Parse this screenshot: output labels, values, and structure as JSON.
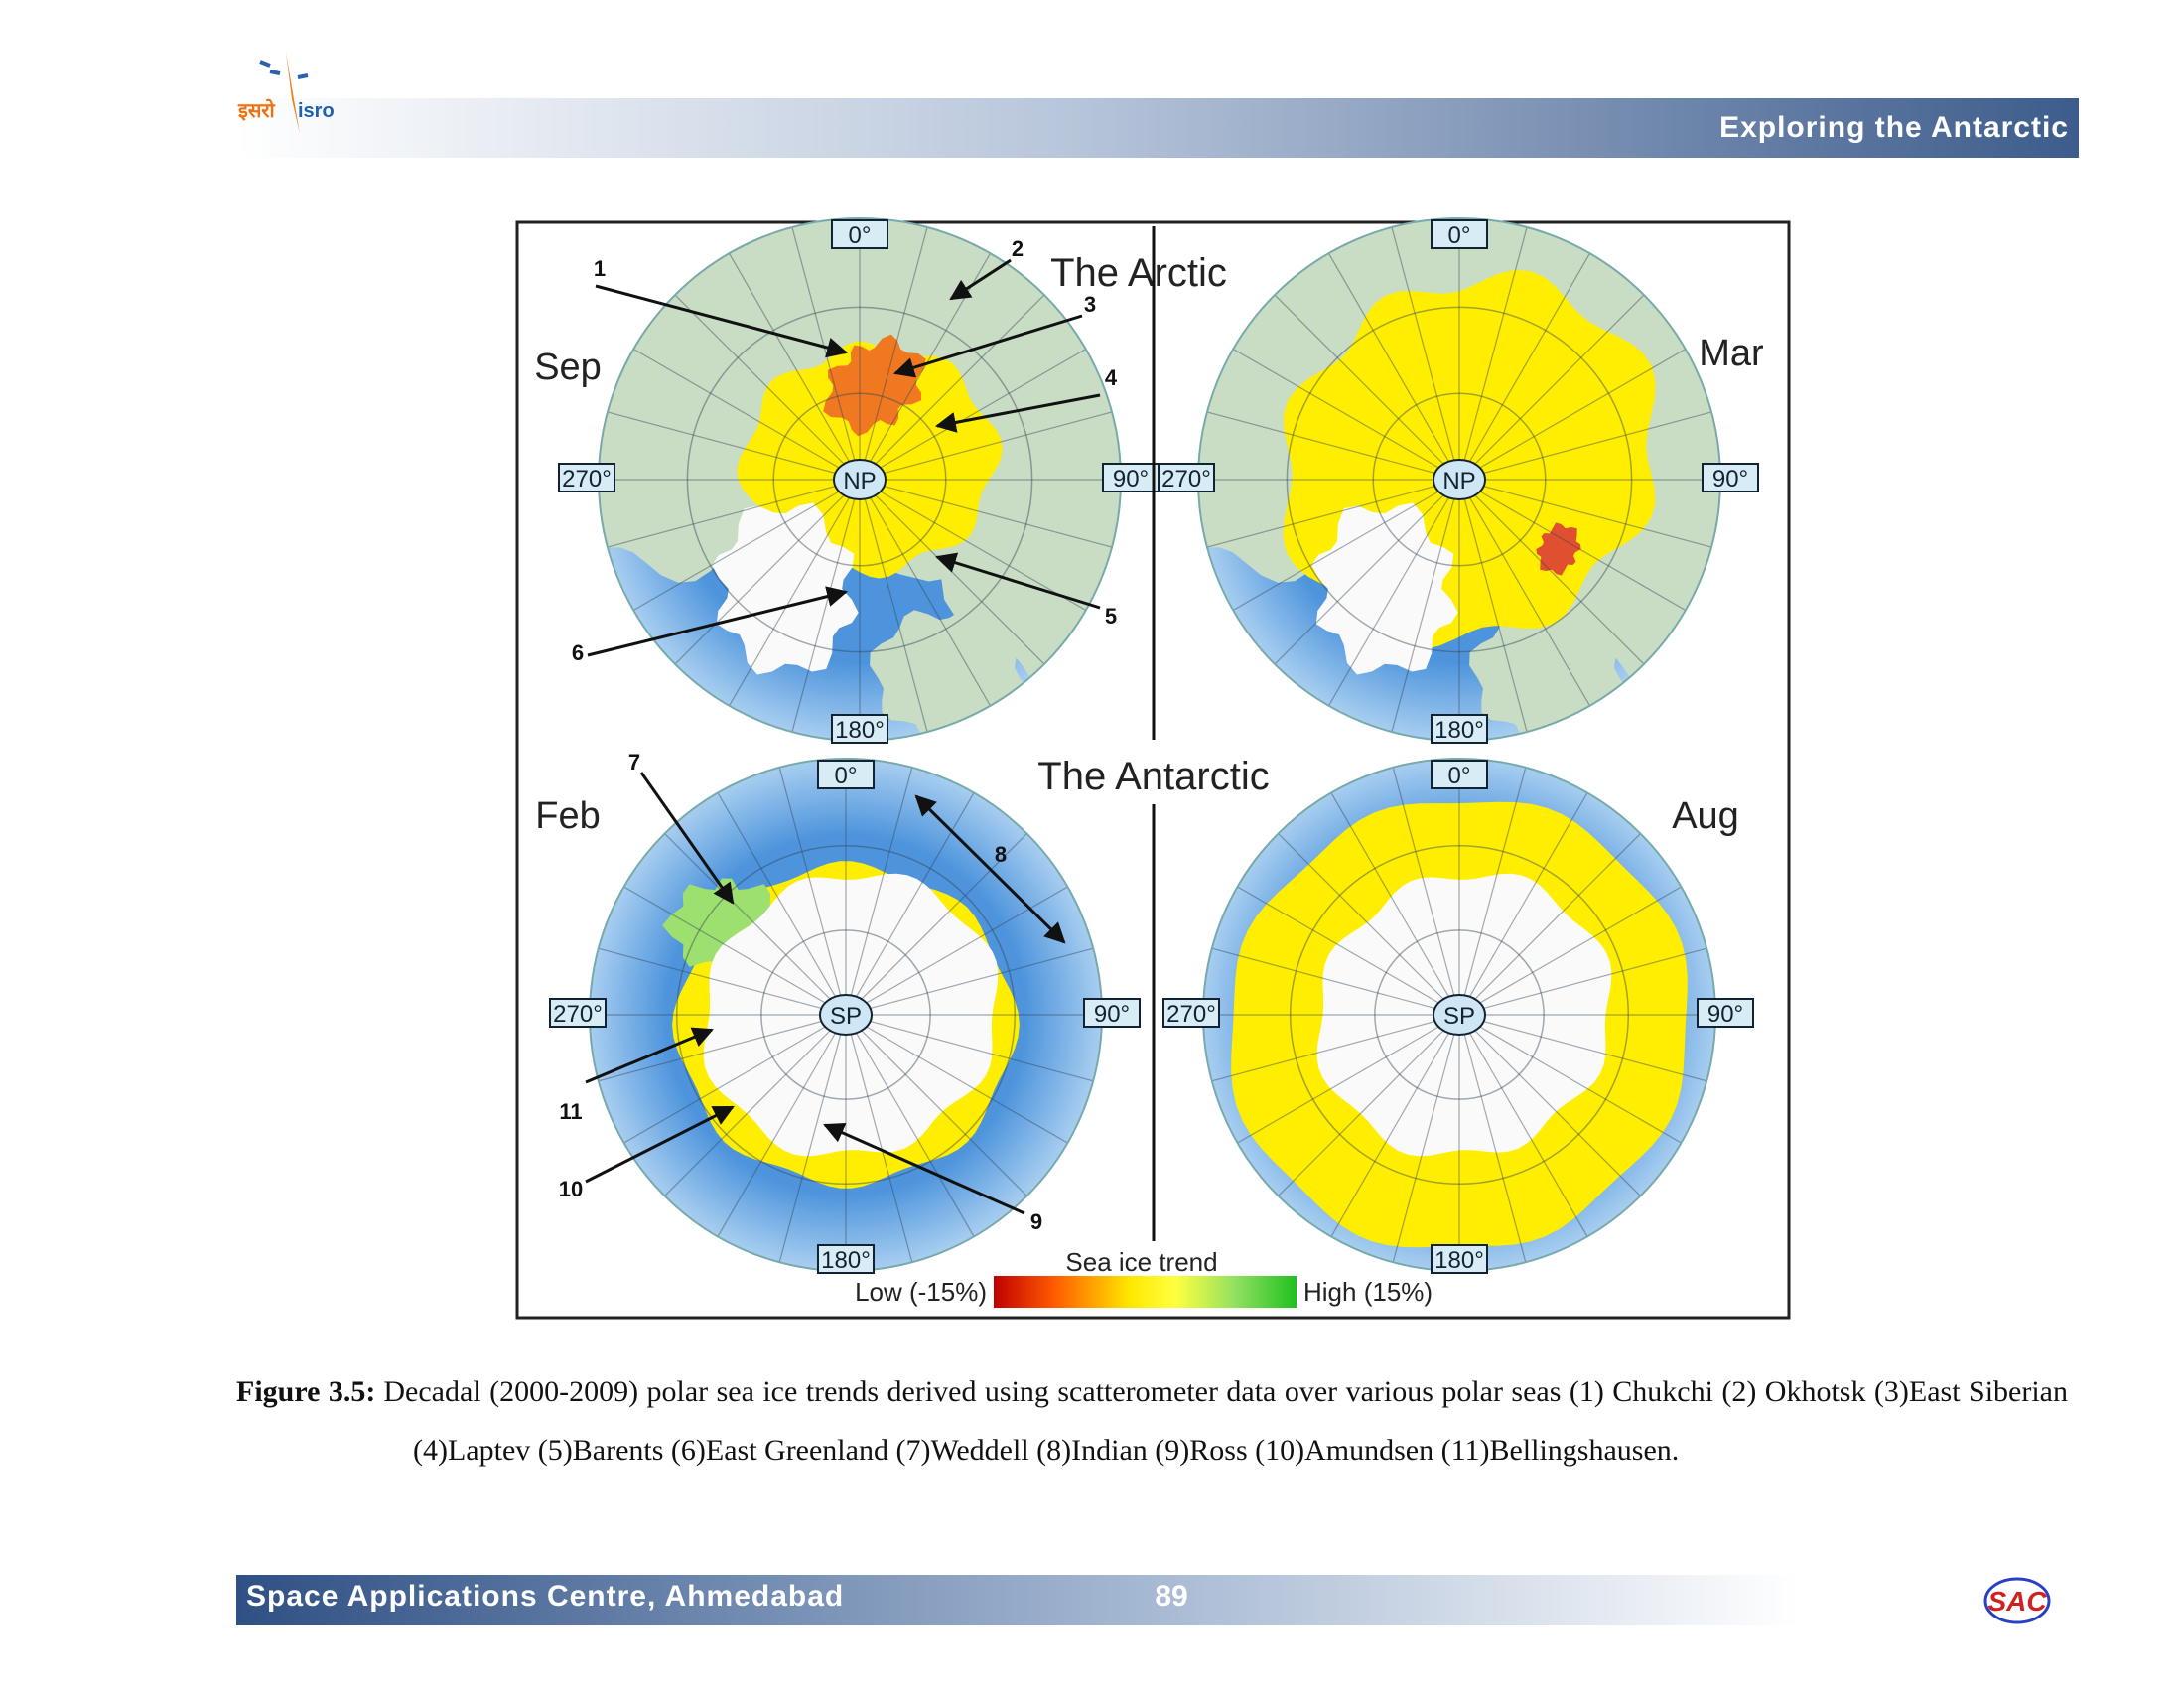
{
  "header": {
    "title": "Exploring the Antarctic",
    "logo_hindi": "इसरो",
    "logo_text": "isro"
  },
  "figure": {
    "section_labels": [
      "The Arctic",
      "The Antarctic"
    ],
    "panels": [
      {
        "month": "Sep",
        "center": "NP",
        "ticks": [
          "0°",
          "90°",
          "180°",
          "270°"
        ]
      },
      {
        "month": "Mar",
        "center": "NP",
        "ticks": [
          "0°",
          "90°",
          "180°",
          "270°"
        ]
      },
      {
        "month": "Feb",
        "center": "SP",
        "ticks": [
          "0°",
          "90°",
          "180°",
          "270°"
        ]
      },
      {
        "month": "Aug",
        "center": "SP",
        "ticks": [
          "0°",
          "90°",
          "180°",
          "270°"
        ]
      }
    ],
    "annotations": [
      "1",
      "2",
      "3",
      "4",
      "5",
      "6",
      "7",
      "8",
      "9",
      "10",
      "11"
    ],
    "legend": {
      "title": "Sea ice trend",
      "low": "Low (-15%)",
      "high": "High (15%)"
    }
  },
  "caption": {
    "label": "Figure 3.5:",
    "text": "Decadal (2000-2009) polar sea ice trends derived using scatterometer data over various polar seas (1) Chukchi (2) Okhotsk (3)East Siberian (4)Laptev (5)Barents (6)East Greenland  (7)Weddell  (8)Indian (9)Ross (10)Amundsen (11)Bellingshausen."
  },
  "footer": {
    "left": "Space Applications Centre, Ahmedabad",
    "page": "89",
    "logo": "SAC"
  }
}
